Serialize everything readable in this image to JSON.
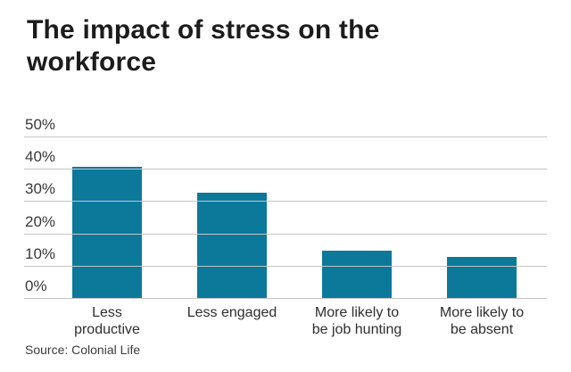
{
  "colors": {
    "bar": "#0c799b",
    "gridline": "#c4c4c4",
    "title_text": "#1c1c1c",
    "axis_text": "#383838"
  },
  "source_note": "Source: Colonial Life",
  "chart_data": {
    "type": "bar",
    "title": "The impact of stress on the workforce",
    "categories": [
      "Less productive",
      "Less engaged",
      "More likely to be job hunting",
      "More likely to be absent"
    ],
    "category_lines": [
      [
        "Less",
        "productive"
      ],
      [
        "Less engaged"
      ],
      [
        "More likely to",
        "be job hunting"
      ],
      [
        "More likely to",
        "be absent"
      ]
    ],
    "values": [
      41,
      33,
      15,
      13
    ],
    "xlabel": "",
    "ylabel": "",
    "ylim": [
      0,
      50
    ],
    "yticks": [
      50,
      40,
      30,
      20,
      10,
      0
    ],
    "ytick_format": "percent",
    "grid": true,
    "legend": "none",
    "source": "Source: Colonial Life"
  }
}
